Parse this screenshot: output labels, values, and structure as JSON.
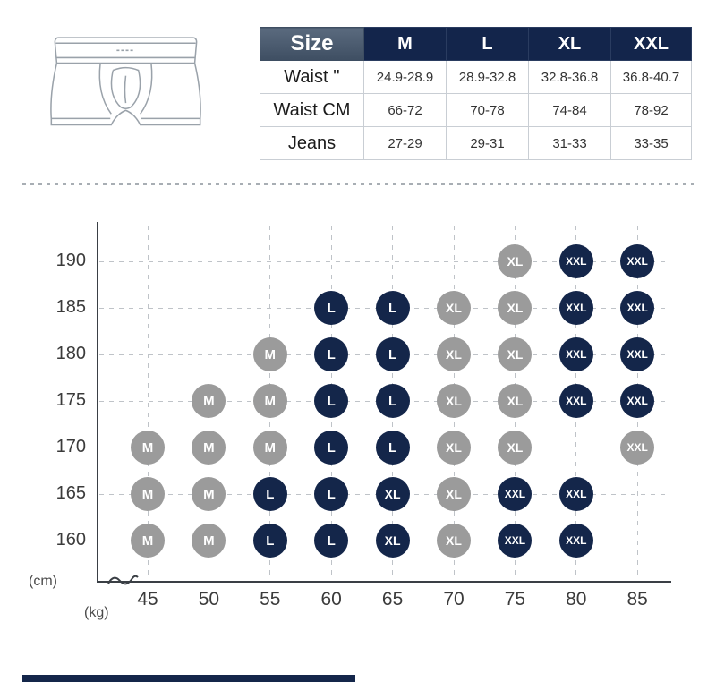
{
  "size_table": {
    "header": [
      "Size",
      "M",
      "L",
      "XL",
      "XXL"
    ],
    "rows": [
      {
        "label": "Waist ''",
        "values": [
          "24.9-28.9",
          "28.9-32.8",
          "32.8-36.8",
          "36.8-40.7"
        ]
      },
      {
        "label": "Waist CM",
        "values": [
          "66-72",
          "70-78",
          "74-84",
          "78-92"
        ]
      },
      {
        "label": "Jeans",
        "values": [
          "27-29",
          "29-31",
          "31-33",
          "33-35"
        ]
      }
    ],
    "header_bg": "#13254b",
    "size_cell_bg": "#46566a"
  },
  "chart_data": {
    "type": "scatter",
    "title": "",
    "x_unit": "(kg)",
    "y_unit": "(cm)",
    "x_ticks": [
      45,
      50,
      55,
      60,
      65,
      70,
      75,
      80,
      85
    ],
    "y_ticks": [
      190,
      185,
      180,
      175,
      170,
      165,
      160
    ],
    "grid": "dashed",
    "legend_position": "none",
    "colors": {
      "gray": "#9b9b9b",
      "navy": "#14264a"
    },
    "points": [
      {
        "cm": 190,
        "kg": 75,
        "size": "XL",
        "color": "gray"
      },
      {
        "cm": 190,
        "kg": 80,
        "size": "XXL",
        "color": "navy"
      },
      {
        "cm": 190,
        "kg": 85,
        "size": "XXL",
        "color": "navy"
      },
      {
        "cm": 185,
        "kg": 60,
        "size": "L",
        "color": "navy"
      },
      {
        "cm": 185,
        "kg": 65,
        "size": "L",
        "color": "navy"
      },
      {
        "cm": 185,
        "kg": 70,
        "size": "XL",
        "color": "gray"
      },
      {
        "cm": 185,
        "kg": 75,
        "size": "XL",
        "color": "gray"
      },
      {
        "cm": 185,
        "kg": 80,
        "size": "XXL",
        "color": "navy"
      },
      {
        "cm": 185,
        "kg": 85,
        "size": "XXL",
        "color": "navy"
      },
      {
        "cm": 180,
        "kg": 55,
        "size": "M",
        "color": "gray"
      },
      {
        "cm": 180,
        "kg": 60,
        "size": "L",
        "color": "navy"
      },
      {
        "cm": 180,
        "kg": 65,
        "size": "L",
        "color": "navy"
      },
      {
        "cm": 180,
        "kg": 70,
        "size": "XL",
        "color": "gray"
      },
      {
        "cm": 180,
        "kg": 75,
        "size": "XL",
        "color": "gray"
      },
      {
        "cm": 180,
        "kg": 80,
        "size": "XXL",
        "color": "navy"
      },
      {
        "cm": 180,
        "kg": 85,
        "size": "XXL",
        "color": "navy"
      },
      {
        "cm": 175,
        "kg": 50,
        "size": "M",
        "color": "gray"
      },
      {
        "cm": 175,
        "kg": 55,
        "size": "M",
        "color": "gray"
      },
      {
        "cm": 175,
        "kg": 60,
        "size": "L",
        "color": "navy"
      },
      {
        "cm": 175,
        "kg": 65,
        "size": "L",
        "color": "navy"
      },
      {
        "cm": 175,
        "kg": 70,
        "size": "XL",
        "color": "gray"
      },
      {
        "cm": 175,
        "kg": 75,
        "size": "XL",
        "color": "gray"
      },
      {
        "cm": 175,
        "kg": 80,
        "size": "XXL",
        "color": "navy"
      },
      {
        "cm": 175,
        "kg": 85,
        "size": "XXL",
        "color": "navy"
      },
      {
        "cm": 170,
        "kg": 45,
        "size": "M",
        "color": "gray"
      },
      {
        "cm": 170,
        "kg": 50,
        "size": "M",
        "color": "gray"
      },
      {
        "cm": 170,
        "kg": 55,
        "size": "M",
        "color": "gray"
      },
      {
        "cm": 170,
        "kg": 60,
        "size": "L",
        "color": "navy"
      },
      {
        "cm": 170,
        "kg": 65,
        "size": "L",
        "color": "navy"
      },
      {
        "cm": 170,
        "kg": 70,
        "size": "XL",
        "color": "gray"
      },
      {
        "cm": 170,
        "kg": 75,
        "size": "XL",
        "color": "gray"
      },
      {
        "cm": 170,
        "kg": 85,
        "size": "XXL",
        "color": "gray"
      },
      {
        "cm": 165,
        "kg": 45,
        "size": "M",
        "color": "gray"
      },
      {
        "cm": 165,
        "kg": 50,
        "size": "M",
        "color": "gray"
      },
      {
        "cm": 165,
        "kg": 55,
        "size": "L",
        "color": "navy"
      },
      {
        "cm": 165,
        "kg": 60,
        "size": "L",
        "color": "navy"
      },
      {
        "cm": 165,
        "kg": 65,
        "size": "XL",
        "color": "navy"
      },
      {
        "cm": 165,
        "kg": 70,
        "size": "XL",
        "color": "gray"
      },
      {
        "cm": 165,
        "kg": 75,
        "size": "XXL",
        "color": "navy"
      },
      {
        "cm": 165,
        "kg": 80,
        "size": "XXL",
        "color": "navy"
      },
      {
        "cm": 160,
        "kg": 45,
        "size": "M",
        "color": "gray"
      },
      {
        "cm": 160,
        "kg": 50,
        "size": "M",
        "color": "gray"
      },
      {
        "cm": 160,
        "kg": 55,
        "size": "L",
        "color": "navy"
      },
      {
        "cm": 160,
        "kg": 60,
        "size": "L",
        "color": "navy"
      },
      {
        "cm": 160,
        "kg": 65,
        "size": "XL",
        "color": "navy"
      },
      {
        "cm": 160,
        "kg": 70,
        "size": "XL",
        "color": "gray"
      },
      {
        "cm": 160,
        "kg": 75,
        "size": "XXL",
        "color": "navy"
      },
      {
        "cm": 160,
        "kg": 80,
        "size": "XXL",
        "color": "navy"
      }
    ]
  }
}
